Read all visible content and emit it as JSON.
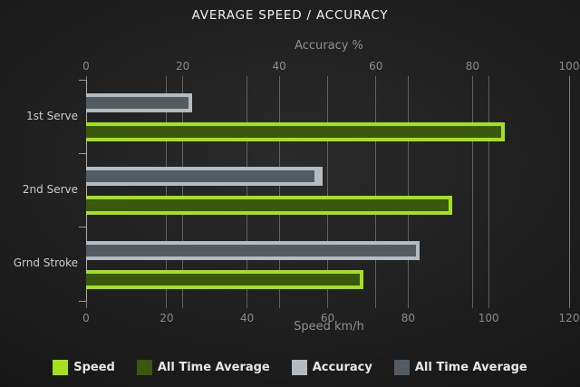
{
  "title": "AVERAGE SPEED / ACCURACY",
  "chart_data": {
    "type": "bar",
    "orientation": "horizontal",
    "categories": [
      "1st Serve",
      "2nd Serve",
      "Grnd Stroke"
    ],
    "series": [
      {
        "name": "Speed",
        "axis": "bottom",
        "values": [
          104,
          91,
          69
        ],
        "color": "#a4e11c"
      },
      {
        "name": "All Time Average",
        "axis": "bottom",
        "values": [
          104,
          91,
          69
        ],
        "color": "#3a580e"
      },
      {
        "name": "Accuracy",
        "axis": "top",
        "values": [
          22,
          49,
          69
        ],
        "color": "#b4bbc1"
      },
      {
        "name": "All Time Average",
        "axis": "top",
        "values": [
          22,
          48,
          69
        ],
        "color": "#545b61"
      }
    ],
    "axes": {
      "top": {
        "label": "Accuracy %",
        "min": 0,
        "max": 100,
        "ticks": [
          0,
          20,
          40,
          60,
          80,
          100
        ]
      },
      "bottom": {
        "label": "Speed km/h",
        "min": 0,
        "max": 120,
        "ticks": [
          0,
          20,
          40,
          60,
          80,
          100,
          120
        ]
      }
    },
    "legend": [
      {
        "label": "Speed",
        "color": "#a4e11c"
      },
      {
        "label": "All Time Average",
        "color": "#3a580e"
      },
      {
        "label": "Accuracy",
        "color": "#b4bbc1"
      },
      {
        "label": "All Time Average",
        "color": "#545b61"
      }
    ],
    "grid_color": "#969696",
    "layout": {
      "grid": true,
      "legend_position": "bottom"
    }
  }
}
